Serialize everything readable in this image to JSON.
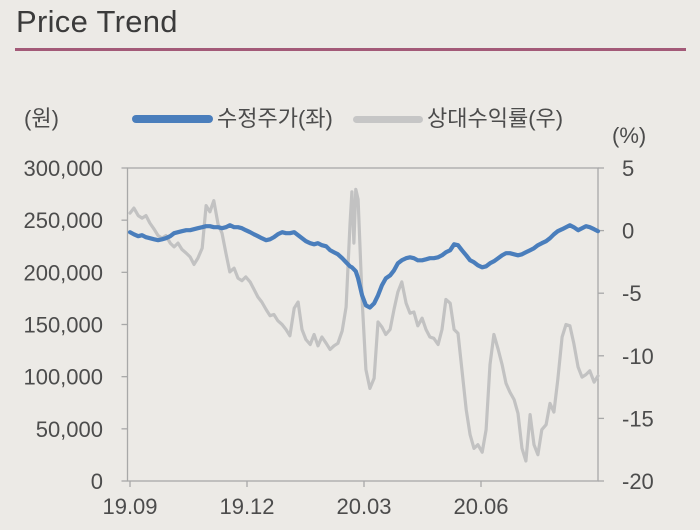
{
  "header": {
    "title": "Price Trend"
  },
  "axes": {
    "left_unit": "(원)",
    "right_unit": "(%)",
    "left_ticks": [
      "300,000",
      "250,000",
      "200,000",
      "150,000",
      "100,000",
      "50,000",
      "0"
    ],
    "right_ticks": [
      "5",
      "0",
      "-5",
      "-10",
      "-15",
      "-20"
    ],
    "x_ticks": [
      "19.09",
      "19.12",
      "20.03",
      "20.06"
    ]
  },
  "legend": [
    {
      "label": "수정주가(좌)",
      "color": "#4a7ebc"
    },
    {
      "label": "상대수익률(우)",
      "color": "#c6c6c6"
    }
  ],
  "colors": {
    "background": "#eceae6",
    "title_text": "#3b3b3b",
    "title_rule": "#a35a78",
    "axis_text": "#4c4c4c",
    "frame": "#a8a8a8",
    "price_line": "#4a7ebc",
    "return_line": "#c2c2c2"
  },
  "chart_data": {
    "type": "line",
    "title": "Price Trend",
    "xlabel": "",
    "ylabel_left": "(원)",
    "ylabel_right": "(%)",
    "grid": false,
    "legend_position": "top",
    "x_unit": "months since 2019-09",
    "x_range": [
      0,
      12
    ],
    "x_tick_positions": [
      0,
      3,
      6,
      9
    ],
    "x_tick_labels": [
      "19.09",
      "19.12",
      "20.03",
      "20.06"
    ],
    "left_axis": {
      "label": "(원)",
      "range": [
        0,
        300000
      ],
      "tick_step": 50000
    },
    "right_axis": {
      "label": "(%)",
      "range": [
        -20,
        5
      ],
      "tick_step": 5
    },
    "x": [
      0,
      0.1,
      0.21,
      0.31,
      0.41,
      0.51,
      0.62,
      0.72,
      0.82,
      0.92,
      1.03,
      1.13,
      1.23,
      1.33,
      1.44,
      1.54,
      1.64,
      1.74,
      1.85,
      1.95,
      2.05,
      2.15,
      2.26,
      2.36,
      2.46,
      2.56,
      2.67,
      2.77,
      2.87,
      2.97,
      3.08,
      3.18,
      3.28,
      3.38,
      3.49,
      3.59,
      3.69,
      3.79,
      3.9,
      4,
      4.1,
      4.21,
      4.31,
      4.41,
      4.51,
      4.62,
      4.72,
      4.82,
      4.92,
      5.03,
      5.13,
      5.23,
      5.33,
      5.44,
      5.54,
      5.64,
      5.69,
      5.74,
      5.79,
      5.85,
      5.95,
      6.05,
      6.15,
      6.26,
      6.36,
      6.46,
      6.56,
      6.67,
      6.77,
      6.87,
      6.97,
      7.08,
      7.18,
      7.28,
      7.38,
      7.49,
      7.59,
      7.69,
      7.79,
      7.9,
      8,
      8.1,
      8.21,
      8.31,
      8.41,
      8.51,
      8.62,
      8.72,
      8.82,
      8.92,
      9.03,
      9.13,
      9.23,
      9.33,
      9.44,
      9.54,
      9.64,
      9.74,
      9.85,
      9.95,
      10.05,
      10.15,
      10.26,
      10.36,
      10.46,
      10.56,
      10.67,
      10.77,
      10.87,
      10.97,
      11.08,
      11.18,
      11.28,
      11.38,
      11.49,
      11.59,
      11.69,
      11.79,
      11.9,
      12
    ],
    "series": [
      {
        "name": "수정주가(좌)",
        "axis": "left",
        "color": "#4a7ebc",
        "width": 4.2,
        "values": [
          238500,
          236500,
          234600,
          235600,
          233700,
          232700,
          231700,
          230800,
          231700,
          232700,
          234600,
          237500,
          238500,
          239400,
          240400,
          240400,
          241300,
          242300,
          243300,
          244200,
          244200,
          243300,
          243300,
          242300,
          243300,
          245200,
          243300,
          243300,
          242300,
          240400,
          238500,
          236500,
          234600,
          232700,
          230800,
          231700,
          233700,
          236500,
          238500,
          237500,
          237500,
          238500,
          235600,
          232700,
          229800,
          227900,
          226900,
          227900,
          226000,
          225000,
          221200,
          219200,
          217300,
          213500,
          209600,
          205800,
          204800,
          202900,
          201000,
          194200,
          177900,
          168300,
          166300,
          170200,
          177900,
          187500,
          194200,
          197100,
          201900,
          208700,
          211500,
          213500,
          214400,
          213500,
          211500,
          211500,
          212500,
          213500,
          213500,
          214400,
          216300,
          219200,
          221200,
          226900,
          226000,
          221200,
          216300,
          211500,
          209600,
          206700,
          204800,
          205800,
          208700,
          210600,
          213500,
          216300,
          218300,
          218300,
          217300,
          216300,
          217300,
          219200,
          221200,
          223100,
          226000,
          227900,
          229800,
          232700,
          236500,
          239400,
          241300,
          243300,
          245200,
          243300,
          240400,
          242300,
          244200,
          243300,
          241300,
          239400
        ]
      },
      {
        "name": "상대수익률(우)",
        "axis": "right",
        "color": "#c2c2c2",
        "width": 3.2,
        "values": [
          1.4,
          1.8,
          1.2,
          1,
          1.2,
          0.6,
          0.1,
          -0.4,
          -0.6,
          -0.4,
          -1,
          -1.3,
          -1,
          -1.5,
          -1.8,
          -2.1,
          -2.7,
          -2.2,
          -1.4,
          2,
          1.5,
          2.4,
          0.5,
          -0.2,
          -1.8,
          -3.3,
          -3,
          -3.8,
          -4,
          -3.7,
          -4.1,
          -4.7,
          -5.3,
          -5.7,
          -6.3,
          -6.8,
          -6.7,
          -7.2,
          -7.5,
          -7.9,
          -8.4,
          -6.2,
          -5.7,
          -7.9,
          -8.7,
          -9.1,
          -8.3,
          -9.2,
          -8.5,
          -9,
          -9.5,
          -9.2,
          -9,
          -8,
          -6.1,
          0.5,
          3.1,
          -1,
          3.3,
          2.5,
          -5.5,
          -11.1,
          -12.6,
          -11.8,
          -7.3,
          -7.7,
          -8.3,
          -7.9,
          -6.3,
          -4.9,
          -4.1,
          -5.8,
          -6.6,
          -6.5,
          -7.6,
          -7,
          -7.9,
          -8.5,
          -8.6,
          -9.1,
          -7.9,
          -5.5,
          -5.8,
          -7.9,
          -8.2,
          -11.1,
          -14.3,
          -16.3,
          -17.4,
          -17.1,
          -17.7,
          -15.9,
          -10.7,
          -8.3,
          -9.5,
          -10.7,
          -12.2,
          -12.9,
          -13.5,
          -14.6,
          -17.4,
          -18.4,
          -14.7,
          -17.1,
          -17.9,
          -15.9,
          -15.5,
          -13.8,
          -14.5,
          -11.9,
          -8.5,
          -7.5,
          -7.6,
          -9,
          -10.9,
          -11.7,
          -11.5,
          -11.2,
          -12.1,
          -11.6
        ]
      }
    ]
  }
}
